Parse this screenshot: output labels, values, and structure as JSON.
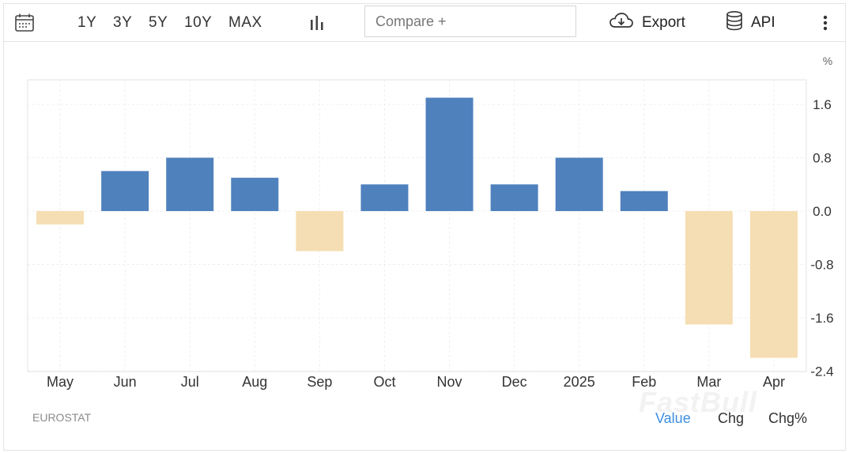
{
  "toolbar": {
    "calendar_icon": "calendar-icon",
    "ranges": [
      "1Y",
      "3Y",
      "5Y",
      "10Y",
      "MAX"
    ],
    "chart_type_icon": "bar-chart-icon",
    "compare_placeholder": "Compare +",
    "export_label": "Export",
    "export_icon": "cloud-download-icon",
    "api_label": "API",
    "api_icon": "database-icon",
    "more_icon": "kebab-menu-icon"
  },
  "unit_label": "%",
  "source": "EUROSTAT",
  "watermark": "FastBull",
  "modes": [
    "Value",
    "Chg",
    "Chg%"
  ],
  "active_mode": "Value",
  "colors": {
    "positive": "#4f81bd",
    "negative": "#f5deb3",
    "accent": "#3d8ee0"
  },
  "chart_data": {
    "type": "bar",
    "categories": [
      "May",
      "Jun",
      "Jul",
      "Aug",
      "Sep",
      "Oct",
      "Nov",
      "Dec",
      "2025",
      "Feb",
      "Mar",
      "Apr"
    ],
    "values": [
      -0.2,
      0.6,
      0.8,
      0.5,
      -0.6,
      0.4,
      1.7,
      0.4,
      0.8,
      0.3,
      -1.7,
      -2.2
    ],
    "y_ticks": [
      "1.6",
      "0.8",
      "0.0",
      "-0.8",
      "-1.6",
      "-2.4"
    ],
    "ylim": [
      -2.4,
      1.6
    ],
    "ylabel": "%",
    "grid": true
  }
}
